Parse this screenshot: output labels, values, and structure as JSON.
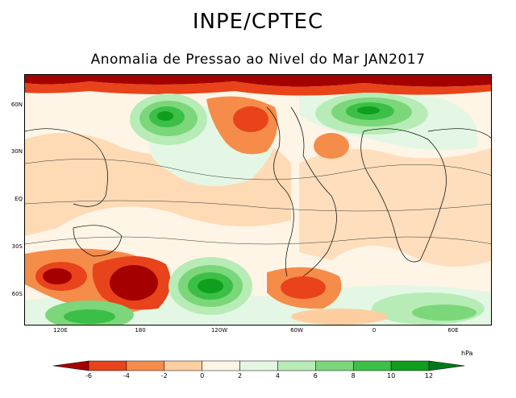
{
  "header": {
    "title": "INPE/CPTEC",
    "subtitle": "Anomalia de Pressao ao Nivel do Mar JAN2017"
  },
  "map": {
    "lat_labels": [
      "60N",
      "30N",
      "EQ",
      "30S",
      "60S"
    ],
    "lon_labels": [
      "120E",
      "180",
      "120W",
      "60W",
      "0",
      "60E"
    ]
  },
  "colorbar": {
    "unit": "hPa",
    "ticks": [
      "-6",
      "-4",
      "-2",
      "0",
      "2",
      "4",
      "6",
      "8",
      "10",
      "12"
    ],
    "colors": [
      "#a50000",
      "#e8431a",
      "#f58c4a",
      "#fdcfa0",
      "#fff5e6",
      "#e4f7e4",
      "#b7ecb6",
      "#7bd77a",
      "#3cbf47",
      "#0f9e1e",
      "#00781a"
    ]
  }
}
